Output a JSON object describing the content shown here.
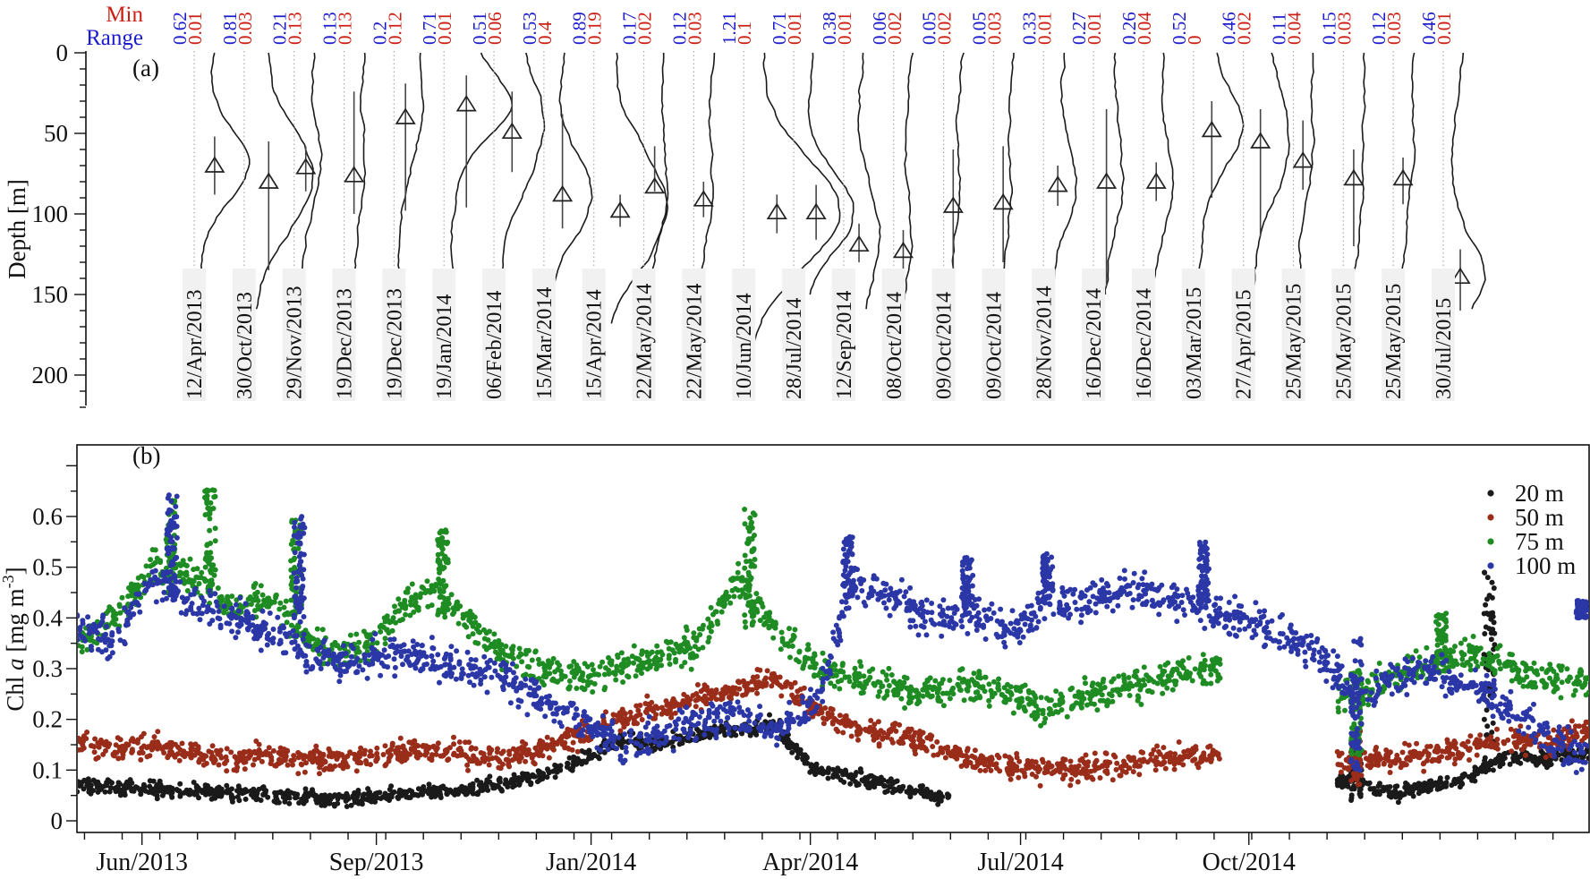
{
  "figure": {
    "panel_a": {
      "label": "(a)",
      "min_label": "Min",
      "range_label": "Range",
      "ylabel": "Depth [m]",
      "min_color": "#cd2015",
      "range_color": "#1c1ccd"
    },
    "panel_b": {
      "label": "(b)",
      "ylabel_parts": {
        "prefix": "Chl ",
        "italic": "a",
        "mid": " [mg m",
        "sup": "-3",
        "suffix": "]"
      }
    }
  },
  "chart_data": [
    {
      "type": "line",
      "title": "Chlorophyll fluorescence depth profiles per CTD cast with depth of maximum (triangle) and range bar",
      "ylabel": "Depth [m]",
      "ylim": [
        0,
        220
      ],
      "depth_ticks": [
        0,
        50,
        100,
        150,
        200
      ],
      "header": {
        "top_row_label": "Min",
        "top_row_color": "#cd2015",
        "bottom_row_label": "Range",
        "bottom_row_color": "#1c1ccd"
      },
      "casts": [
        {
          "date": "12/Apr/2013",
          "range": "0.62",
          "min": "0.01",
          "dcm_depth_m": 70,
          "range_bar_m": [
            52,
            88
          ]
        },
        {
          "date": "30/Oct/2013",
          "range": "0.81",
          "min": "0.03",
          "dcm_depth_m": 80,
          "range_bar_m": [
            55,
            135
          ]
        },
        {
          "date": "29/Nov/2013",
          "range": "0.21",
          "min": "0.13",
          "dcm_depth_m": 71,
          "range_bar_m": [
            58,
            86
          ]
        },
        {
          "date": "19/Dec/2013",
          "range": "0.13",
          "min": "0.13",
          "dcm_depth_m": 76,
          "range_bar_m": [
            24,
            100
          ]
        },
        {
          "date": "19/Dec/2013",
          "range": "0.2",
          "min": "0.12",
          "dcm_depth_m": 40,
          "range_bar_m": [
            19,
            98
          ]
        },
        {
          "date": "19/Jan/2014",
          "range": "0.71",
          "min": "0.01",
          "dcm_depth_m": 32,
          "range_bar_m": [
            14,
            96
          ]
        },
        {
          "date": "06/Feb/2014",
          "range": "0.51",
          "min": "0.06",
          "dcm_depth_m": 49,
          "range_bar_m": [
            24,
            74
          ]
        },
        {
          "date": "15/Mar/2014",
          "range": "0.53",
          "min": "0.4",
          "dcm_depth_m": 88,
          "range_bar_m": [
            38,
            109
          ]
        },
        {
          "date": "15/Apr/2014",
          "range": "0.89",
          "min": "0.19",
          "dcm_depth_m": 98,
          "range_bar_m": [
            88,
            108
          ]
        },
        {
          "date": "22/May/2014",
          "range": "0.17",
          "min": "0.02",
          "dcm_depth_m": 83,
          "range_bar_m": [
            58,
            86
          ]
        },
        {
          "date": "22/May/2014",
          "range": "0.12",
          "min": "0.03",
          "dcm_depth_m": 91,
          "range_bar_m": [
            80,
            102
          ]
        },
        {
          "date": "10/Jun/2014",
          "range": "1.21",
          "min": "0.1",
          "dcm_depth_m": 99,
          "range_bar_m": [
            88,
            112
          ]
        },
        {
          "date": "28/Jul/2014",
          "range": "0.71",
          "min": "0.01",
          "dcm_depth_m": 99,
          "range_bar_m": [
            82,
            116
          ]
        },
        {
          "date": "12/Sep/2014",
          "range": "0.38",
          "min": "0.01",
          "dcm_depth_m": 119,
          "range_bar_m": [
            106,
            130
          ]
        },
        {
          "date": "08/Oct/2014",
          "range": "0.06",
          "min": "0.02",
          "dcm_depth_m": 123,
          "range_bar_m": [
            110,
            136
          ]
        },
        {
          "date": "09/Oct/2014",
          "range": "0.05",
          "min": "0.02",
          "dcm_depth_m": 95,
          "range_bar_m": [
            60,
            140
          ]
        },
        {
          "date": "09/Oct/2014",
          "range": "0.05",
          "min": "0.03",
          "dcm_depth_m": 93,
          "range_bar_m": [
            58,
            130
          ]
        },
        {
          "date": "28/Nov/2014",
          "range": "0.33",
          "min": "0.01",
          "dcm_depth_m": 82,
          "range_bar_m": [
            70,
            95
          ]
        },
        {
          "date": "16/Dec/2014",
          "range": "0.27",
          "min": "0.01",
          "dcm_depth_m": 80,
          "range_bar_m": [
            35,
            145
          ]
        },
        {
          "date": "16/Dec/2014",
          "range": "0.26",
          "min": "0.04",
          "dcm_depth_m": 80,
          "range_bar_m": [
            68,
            92
          ]
        },
        {
          "date": "03/Mar/2015",
          "range": "0.52",
          "min": "0",
          "dcm_depth_m": 48,
          "range_bar_m": [
            30,
            90
          ]
        },
        {
          "date": "27/Apr/2015",
          "range": "0.46",
          "min": "0.02",
          "dcm_depth_m": 55,
          "range_bar_m": [
            35,
            114
          ]
        },
        {
          "date": "25/May/2015",
          "range": "0.11",
          "min": "0.04",
          "dcm_depth_m": 67,
          "range_bar_m": [
            42,
            85
          ]
        },
        {
          "date": "25/May/2015",
          "range": "0.15",
          "min": "0.03",
          "dcm_depth_m": 78,
          "range_bar_m": [
            60,
            120
          ]
        },
        {
          "date": "25/May/2015",
          "range": "0.12",
          "min": "0.03",
          "dcm_depth_m": 78,
          "range_bar_m": [
            65,
            94
          ]
        },
        {
          "date": "30/Jul/2015",
          "range": "0.46",
          "min": "0.01",
          "dcm_depth_m": 139,
          "range_bar_m": [
            122,
            160
          ]
        }
      ]
    },
    {
      "type": "scatter",
      "title": "Chl a time series at mooring depths",
      "ylabel": "Chl a [mg m-3]",
      "ylim": [
        0,
        0.65
      ],
      "yticks": [
        "0",
        "0.1",
        "0.2",
        "0.3",
        "0.4",
        "0.5",
        "0.6"
      ],
      "xticks": [
        {
          "f": 0.043,
          "label": "Jun/2013"
        },
        {
          "f": 0.198,
          "label": "Sep/2013"
        },
        {
          "f": 0.34,
          "label": "Jan/2014"
        },
        {
          "f": 0.485,
          "label": "Apr/2014"
        },
        {
          "f": 0.624,
          "label": "Jul/2014"
        },
        {
          "f": 0.775,
          "label": "Oct/2014"
        }
      ],
      "legend": [
        {
          "label": "20 m",
          "color": "#1a1a1a"
        },
        {
          "label": "50 m",
          "color": "#9a2d1a"
        },
        {
          "label": "75 m",
          "color": "#1e8c22"
        },
        {
          "label": "100 m",
          "color": "#2b37a6"
        }
      ],
      "n_cells": 39,
      "series": [
        {
          "name": "20 m",
          "color": "#1a1a1a",
          "spread": 0.016,
          "mean": [
            0.07,
            0.068,
            0.062,
            0.058,
            0.054,
            0.05,
            0.046,
            0.042,
            0.05,
            0.058,
            0.062,
            0.072,
            0.09,
            0.12,
            0.16,
            0.15,
            0.17,
            0.18,
            0.19,
            0.1,
            0.085,
            0.07,
            0.05,
            null,
            null,
            null,
            null,
            null,
            null,
            null,
            null,
            null,
            null,
            0.08,
            0.05,
            0.07,
            0.09,
            0.13,
            0.12,
            0.14
          ],
          "strips": [
            {
              "f": 0.846,
              "lo": 0.04,
              "hi": 0.135
            },
            {
              "f": 0.934,
              "lo": 0.1,
              "hi": 0.5
            }
          ]
        },
        {
          "name": "50 m",
          "color": "#9a2d1a",
          "spread": 0.026,
          "mean": [
            0.15,
            0.14,
            0.15,
            0.13,
            0.12,
            0.13,
            0.12,
            0.12,
            0.13,
            0.14,
            0.13,
            0.12,
            0.14,
            0.17,
            0.2,
            0.22,
            0.24,
            0.26,
            0.28,
            0.22,
            0.18,
            0.17,
            0.15,
            0.12,
            0.11,
            0.1,
            0.1,
            0.11,
            0.12,
            0.13,
            null,
            null,
            null,
            0.12,
            0.12,
            0.13,
            0.15,
            0.16,
            0.15,
            0.18
          ],
          "strips": [
            {
              "f": 0.846,
              "lo": 0.07,
              "hi": 0.185
            }
          ]
        },
        {
          "name": "75 m",
          "color": "#1e8c22",
          "spread": 0.035,
          "mean": [
            0.35,
            0.4,
            0.5,
            0.48,
            0.42,
            0.44,
            0.35,
            0.33,
            0.38,
            0.46,
            0.4,
            0.33,
            0.3,
            0.28,
            0.3,
            0.32,
            0.35,
            0.48,
            0.38,
            0.3,
            0.28,
            0.26,
            0.25,
            0.27,
            0.25,
            0.22,
            0.24,
            0.26,
            0.28,
            0.3,
            null,
            null,
            null,
            0.25,
            0.29,
            0.31,
            0.33,
            0.3,
            0.28,
            0.27
          ],
          "strips": [
            {
              "f": 0.062,
              "lo": 0.44,
              "hi": 0.635
            },
            {
              "f": 0.088,
              "lo": 0.45,
              "hi": 0.655
            },
            {
              "f": 0.145,
              "lo": 0.4,
              "hi": 0.605
            },
            {
              "f": 0.242,
              "lo": 0.4,
              "hi": 0.575
            },
            {
              "f": 0.445,
              "lo": 0.38,
              "hi": 0.615
            },
            {
              "f": 0.846,
              "lo": 0.12,
              "hi": 0.3
            },
            {
              "f": 0.902,
              "lo": 0.29,
              "hi": 0.41
            }
          ]
        },
        {
          "name": "100 m",
          "color": "#2b37a6",
          "spread": 0.04,
          "mean": [
            0.38,
            0.36,
            0.48,
            0.42,
            0.4,
            0.38,
            0.33,
            0.31,
            0.33,
            0.32,
            0.3,
            0.28,
            0.24,
            0.19,
            0.15,
            0.17,
            0.19,
            0.21,
            0.17,
            0.22,
            0.47,
            0.44,
            0.4,
            0.41,
            0.37,
            0.42,
            0.43,
            0.46,
            0.44,
            0.42,
            0.4,
            0.37,
            0.34,
            0.24,
            0.28,
            0.3,
            0.27,
            0.22,
            0.16,
            0.13
          ],
          "strips": [
            {
              "f": 0.063,
              "lo": 0.44,
              "hi": 0.645
            },
            {
              "f": 0.147,
              "lo": 0.4,
              "hi": 0.6
            },
            {
              "f": 0.51,
              "lo": 0.44,
              "hi": 0.56
            },
            {
              "f": 0.589,
              "lo": 0.42,
              "hi": 0.52
            },
            {
              "f": 0.642,
              "lo": 0.44,
              "hi": 0.53
            },
            {
              "f": 0.745,
              "lo": 0.42,
              "hi": 0.55
            },
            {
              "f": 0.846,
              "lo": 0.1,
              "hi": 0.36
            },
            {
              "f": 0.995,
              "lo": 0.4,
              "hi": 0.435
            }
          ]
        }
      ]
    }
  ]
}
